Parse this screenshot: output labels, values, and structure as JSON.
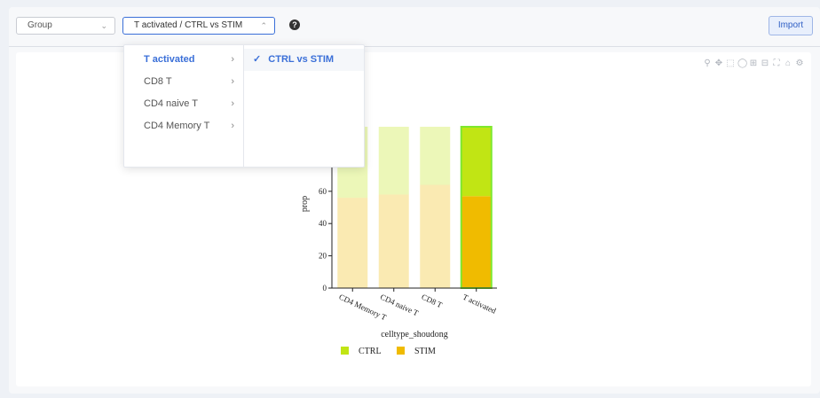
{
  "toolbar": {
    "group_select": "Group",
    "dataset_select": "T activated / CTRL vs STIM",
    "help_symbol": "?",
    "import_label": "Import"
  },
  "cascader": {
    "level1": [
      {
        "label": "T activated",
        "selected": true
      },
      {
        "label": "CD8 T",
        "selected": false
      },
      {
        "label": "CD4 naive T",
        "selected": false
      },
      {
        "label": "CD4 Memory T",
        "selected": false
      }
    ],
    "level2": [
      {
        "label": "CTRL vs STIM",
        "selected": true
      }
    ]
  },
  "modebar_icons": [
    "zoom-icon",
    "pan-icon",
    "box-select-icon",
    "lasso-icon",
    "zoom-in-icon",
    "zoom-out-icon",
    "autoscale-icon",
    "reset-axes-icon",
    "settings-icon"
  ],
  "chart_data": {
    "type": "bar",
    "stacked": true,
    "categories": [
      "CD4 Memory T",
      "CD4 naive T",
      "CD8 T",
      "T activated"
    ],
    "series": [
      {
        "name": "STIM",
        "values": [
          56,
          58,
          64,
          57
        ],
        "color": "#f0bb00"
      },
      {
        "name": "CTRL",
        "values": [
          44,
          42,
          36,
          43
        ],
        "color": "#c1e514"
      }
    ],
    "highlight_category": "T activated",
    "xlabel": "celltype_shoudong",
    "ylabel": "prop",
    "ylim": [
      0,
      100
    ],
    "yticks": [
      0,
      20,
      40,
      60
    ],
    "legend": [
      {
        "label": "CTRL",
        "color": "#c1e514"
      },
      {
        "label": "STIM",
        "color": "#f0bb00"
      }
    ],
    "legend_position": "bottom"
  }
}
